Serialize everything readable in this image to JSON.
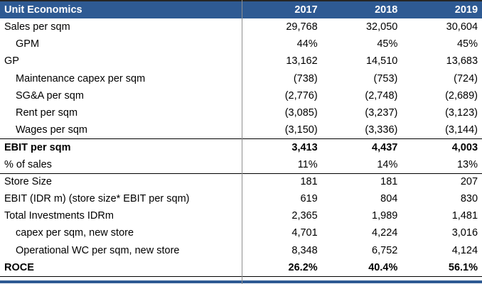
{
  "colors": {
    "header_bg": "#2E5A93",
    "bottom_bar": "#2E5A93",
    "top_line": "#262626",
    "divider": "#8f8f8f",
    "section_line": "#000000",
    "header_text": "#ffffff"
  },
  "chart_data": {
    "type": "table",
    "title": "Unit Economics",
    "columns": [
      "2017",
      "2018",
      "2019"
    ],
    "rows": [
      {
        "label": "Sales per sqm",
        "values": [
          "29,768",
          "32,050",
          "30,604"
        ],
        "indent": false,
        "bold": false,
        "line_above": false
      },
      {
        "label": "GPM",
        "values": [
          "44%",
          "45%",
          "45%"
        ],
        "indent": true,
        "bold": false,
        "line_above": false
      },
      {
        "label": "GP",
        "values": [
          "13,162",
          "14,510",
          "13,683"
        ],
        "indent": false,
        "bold": false,
        "line_above": false
      },
      {
        "label": "Maintenance capex per sqm",
        "values": [
          "(738)",
          "(753)",
          "(724)"
        ],
        "indent": true,
        "bold": false,
        "line_above": false
      },
      {
        "label": "SG&A per sqm",
        "values": [
          "(2,776)",
          "(2,748)",
          "(2,689)"
        ],
        "indent": true,
        "bold": false,
        "line_above": false
      },
      {
        "label": "Rent per sqm",
        "values": [
          "(3,085)",
          "(3,237)",
          "(3,123)"
        ],
        "indent": true,
        "bold": false,
        "line_above": false
      },
      {
        "label": "Wages per sqm",
        "values": [
          "(3,150)",
          "(3,336)",
          "(3,144)"
        ],
        "indent": true,
        "bold": false,
        "line_above": false
      },
      {
        "label": "EBIT per sqm",
        "values": [
          "3,413",
          "4,437",
          "4,003"
        ],
        "indent": false,
        "bold": true,
        "line_above": true
      },
      {
        "label": "% of sales",
        "values": [
          "11%",
          "14%",
          "13%"
        ],
        "indent": false,
        "bold": false,
        "line_above": false
      },
      {
        "label": "Store Size",
        "values": [
          "181",
          "181",
          "207"
        ],
        "indent": false,
        "bold": false,
        "line_above": true
      },
      {
        "label": "EBIT (IDR m) (store size* EBIT per sqm)",
        "values": [
          "619",
          "804",
          "830"
        ],
        "indent": false,
        "bold": false,
        "line_above": false
      },
      {
        "label": "Total Investments IDRm",
        "values": [
          "2,365",
          "1,989",
          "1,481"
        ],
        "indent": false,
        "bold": false,
        "line_above": false
      },
      {
        "label": "capex per sqm, new store",
        "values": [
          "4,701",
          "4,224",
          "3,016"
        ],
        "indent": true,
        "bold": false,
        "line_above": false
      },
      {
        "label": "Operational WC per sqm, new store",
        "values": [
          "8,348",
          "6,752",
          "4,124"
        ],
        "indent": true,
        "bold": false,
        "line_above": false
      },
      {
        "label": "ROCE",
        "values": [
          "26.2%",
          "40.4%",
          "56.1%"
        ],
        "indent": false,
        "bold": true,
        "line_above": false
      }
    ]
  }
}
